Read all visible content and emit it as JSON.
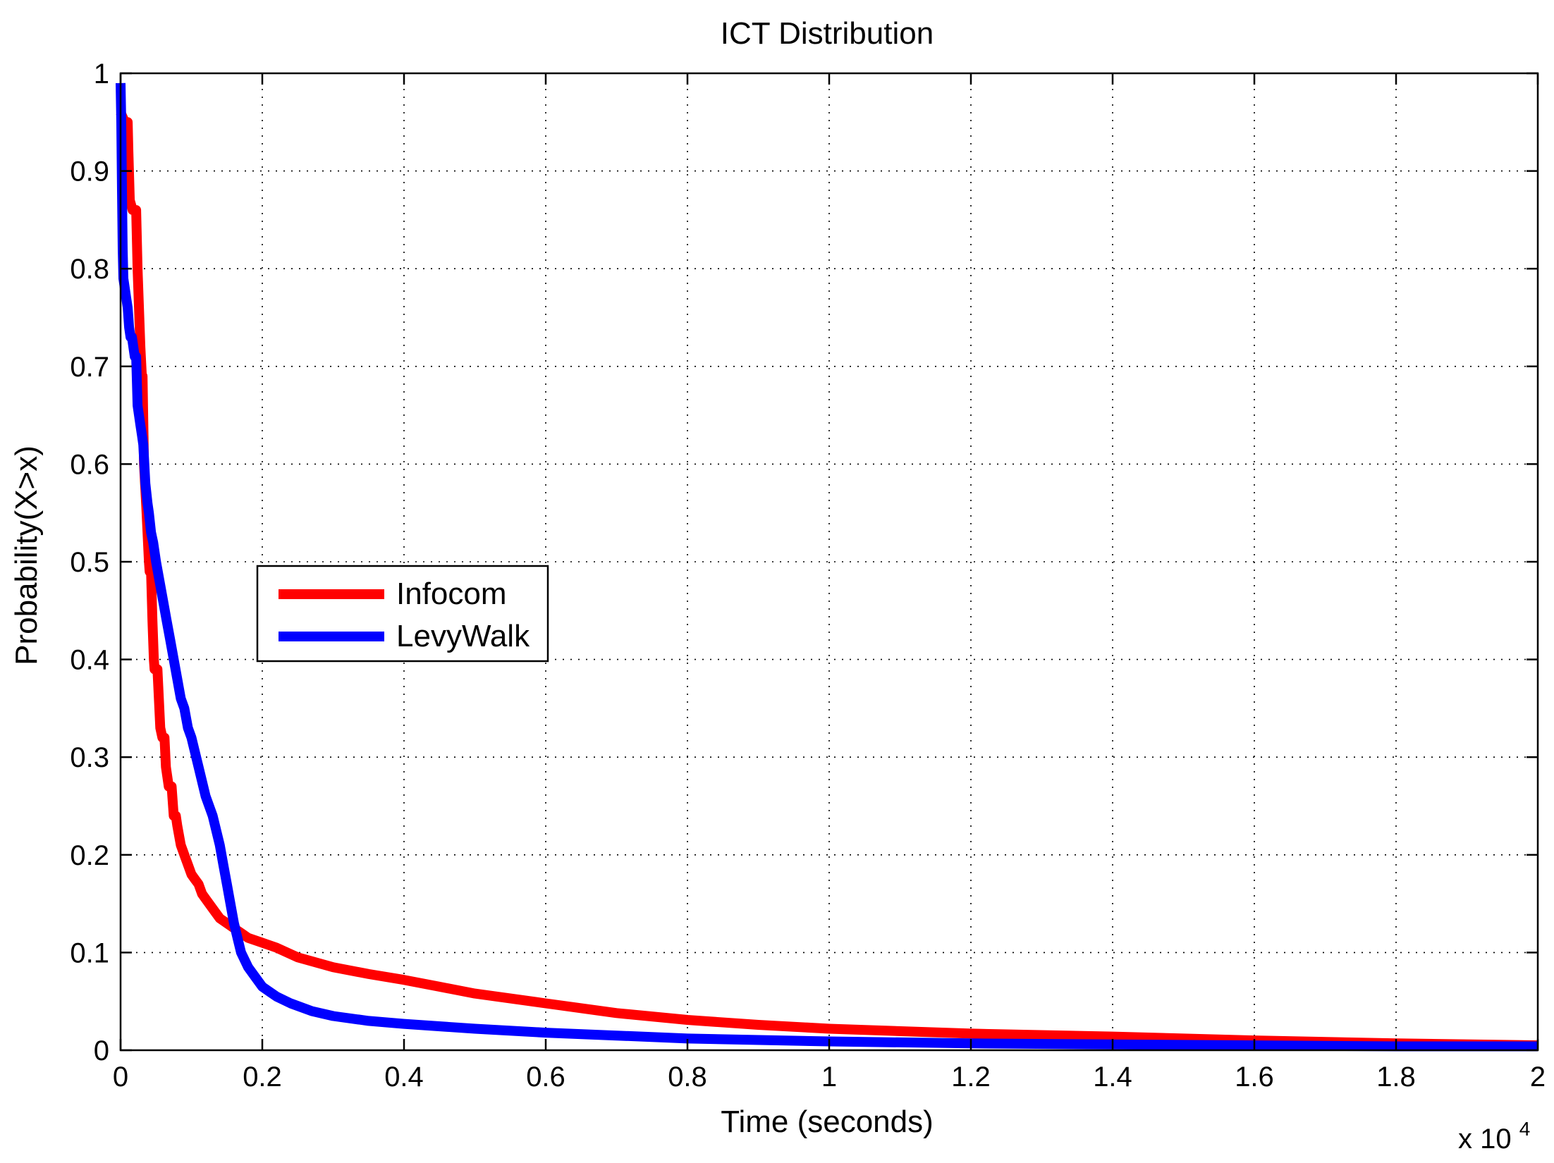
{
  "chart_data": {
    "type": "line",
    "title": "ICT Distribution",
    "xlabel": "Time (seconds)",
    "ylabel": "Probability(X>x)",
    "x_multiplier_label": "x 10",
    "x_multiplier_exponent": "4",
    "xlim": [
      0,
      20000
    ],
    "ylim": [
      0,
      1
    ],
    "grid": true,
    "legend_position": "center-left",
    "x_ticks": [
      0,
      2000,
      4000,
      6000,
      8000,
      10000,
      12000,
      14000,
      16000,
      18000,
      20000
    ],
    "x_tick_labels": [
      "0",
      "0.2",
      "0.4",
      "0.6",
      "0.8",
      "1",
      "1.2",
      "1.4",
      "1.6",
      "1.8",
      "2"
    ],
    "y_ticks": [
      0,
      0.1,
      0.2,
      0.3,
      0.4,
      0.5,
      0.6,
      0.7,
      0.8,
      0.9,
      1.0
    ],
    "y_tick_labels": [
      "0",
      "0.1",
      "0.2",
      "0.3",
      "0.4",
      "0.5",
      "0.6",
      "0.7",
      "0.8",
      "0.9",
      "1"
    ],
    "series": [
      {
        "name": "Infocom",
        "color": "#ff0000",
        "x": [
          0,
          60,
          100,
          110,
          130,
          170,
          200,
          220,
          240,
          260,
          280,
          300,
          310,
          330,
          360,
          380,
          400,
          410,
          430,
          450,
          470,
          480,
          500,
          520,
          540,
          560,
          590,
          600,
          620,
          640,
          680,
          720,
          750,
          780,
          800,
          850,
          900,
          950,
          1000,
          1050,
          1100,
          1150,
          1200,
          1300,
          1400,
          1500,
          1600,
          1700,
          1800,
          2000,
          2200,
          2500,
          3000,
          3500,
          4000,
          4500,
          5000,
          6000,
          7000,
          8000,
          9000,
          10000,
          12000,
          14000,
          16000,
          18000,
          20000
        ],
        "values": [
          0.96,
          0.95,
          0.95,
          0.92,
          0.87,
          0.86,
          0.86,
          0.86,
          0.8,
          0.76,
          0.72,
          0.69,
          0.69,
          0.6,
          0.56,
          0.53,
          0.5,
          0.49,
          0.49,
          0.44,
          0.4,
          0.39,
          0.39,
          0.39,
          0.36,
          0.33,
          0.32,
          0.32,
          0.32,
          0.29,
          0.27,
          0.27,
          0.24,
          0.24,
          0.23,
          0.21,
          0.2,
          0.19,
          0.18,
          0.175,
          0.17,
          0.16,
          0.155,
          0.145,
          0.135,
          0.13,
          0.125,
          0.12,
          0.115,
          0.11,
          0.105,
          0.095,
          0.085,
          0.078,
          0.072,
          0.065,
          0.058,
          0.048,
          0.038,
          0.031,
          0.026,
          0.022,
          0.017,
          0.014,
          0.01,
          0.007,
          0.005
        ]
      },
      {
        "name": "LevyWalk",
        "color": "#0000ff",
        "x": [
          0,
          10,
          20,
          30,
          40,
          60,
          80,
          100,
          120,
          140,
          160,
          180,
          200,
          220,
          240,
          260,
          280,
          300,
          320,
          350,
          380,
          400,
          430,
          460,
          500,
          550,
          600,
          650,
          700,
          750,
          800,
          850,
          900,
          950,
          1000,
          1100,
          1200,
          1300,
          1400,
          1450,
          1500,
          1550,
          1600,
          1650,
          1700,
          1800,
          1900,
          2000,
          2200,
          2400,
          2700,
          3000,
          3500,
          4000,
          5000,
          6000,
          7000,
          8000,
          10000,
          12000,
          14000,
          16000,
          18000,
          20000
        ],
        "values": [
          0.99,
          0.95,
          0.88,
          0.82,
          0.79,
          0.78,
          0.77,
          0.76,
          0.74,
          0.73,
          0.73,
          0.72,
          0.71,
          0.71,
          0.66,
          0.65,
          0.64,
          0.63,
          0.62,
          0.58,
          0.56,
          0.55,
          0.53,
          0.52,
          0.5,
          0.48,
          0.46,
          0.44,
          0.42,
          0.4,
          0.38,
          0.36,
          0.35,
          0.33,
          0.32,
          0.29,
          0.26,
          0.24,
          0.21,
          0.19,
          0.17,
          0.15,
          0.13,
          0.115,
          0.1,
          0.085,
          0.075,
          0.065,
          0.055,
          0.048,
          0.04,
          0.035,
          0.03,
          0.027,
          0.022,
          0.018,
          0.015,
          0.012,
          0.009,
          0.007,
          0.006,
          0.005,
          0.004,
          0.004
        ]
      }
    ]
  }
}
